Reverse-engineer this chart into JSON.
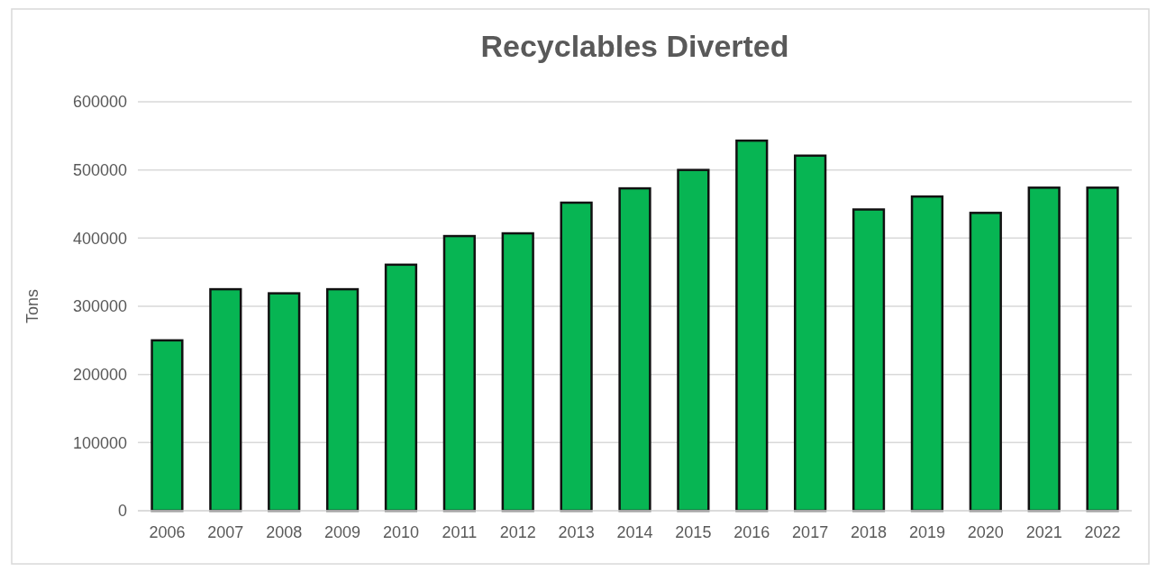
{
  "chart_data": {
    "type": "bar",
    "title": "Recyclables Diverted",
    "ylabel": "Tons",
    "categories": [
      "2006",
      "2007",
      "2008",
      "2009",
      "2010",
      "2011",
      "2012",
      "2013",
      "2014",
      "2015",
      "2016",
      "2017",
      "2018",
      "2019",
      "2020",
      "2021",
      "2022"
    ],
    "values": [
      250000,
      325000,
      319000,
      325000,
      361000,
      403000,
      407000,
      452000,
      473000,
      500000,
      543000,
      521000,
      442000,
      461000,
      437000,
      474000,
      474000
    ],
    "color": "#07b553",
    "ylim": [
      0,
      600000
    ],
    "yticks": [
      0,
      100000,
      200000,
      300000,
      400000,
      500000,
      600000
    ],
    "grid": "y"
  }
}
